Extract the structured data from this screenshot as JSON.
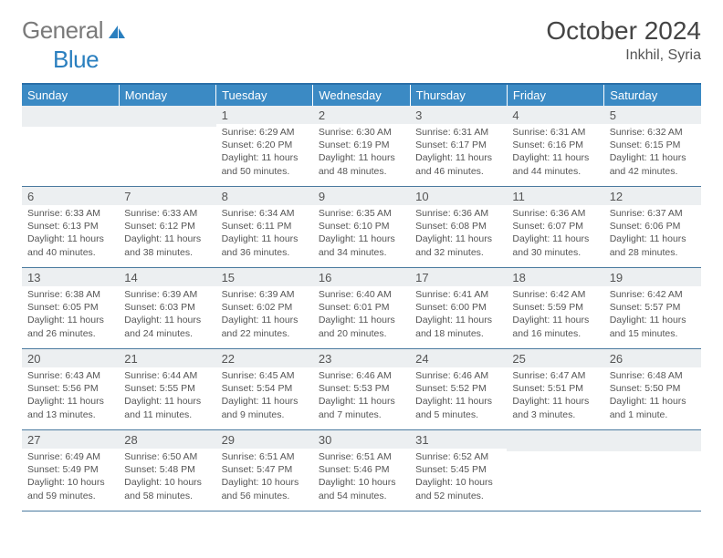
{
  "logo": {
    "part1": "General",
    "part2": "Blue"
  },
  "title": "October 2024",
  "location": "Inkhil, Syria",
  "styling": {
    "page_bg": "#ffffff",
    "header_bg": "#3b8ac4",
    "header_text": "#ffffff",
    "daynum_bg": "#eceff1",
    "text_color": "#555555",
    "rule_color": "#4a7a9f",
    "logo_gray": "#7a7a7a",
    "logo_blue": "#2a7fbf",
    "title_fontsize": 28,
    "body_fontsize": 10.5,
    "columns": 7
  },
  "day_headers": [
    "Sunday",
    "Monday",
    "Tuesday",
    "Wednesday",
    "Thursday",
    "Friday",
    "Saturday"
  ],
  "weeks": [
    [
      {
        "n": "",
        "sunrise": "",
        "sunset": "",
        "daylight": ""
      },
      {
        "n": "",
        "sunrise": "",
        "sunset": "",
        "daylight": ""
      },
      {
        "n": "1",
        "sunrise": "6:29 AM",
        "sunset": "6:20 PM",
        "daylight": "11 hours and 50 minutes."
      },
      {
        "n": "2",
        "sunrise": "6:30 AM",
        "sunset": "6:19 PM",
        "daylight": "11 hours and 48 minutes."
      },
      {
        "n": "3",
        "sunrise": "6:31 AM",
        "sunset": "6:17 PM",
        "daylight": "11 hours and 46 minutes."
      },
      {
        "n": "4",
        "sunrise": "6:31 AM",
        "sunset": "6:16 PM",
        "daylight": "11 hours and 44 minutes."
      },
      {
        "n": "5",
        "sunrise": "6:32 AM",
        "sunset": "6:15 PM",
        "daylight": "11 hours and 42 minutes."
      }
    ],
    [
      {
        "n": "6",
        "sunrise": "6:33 AM",
        "sunset": "6:13 PM",
        "daylight": "11 hours and 40 minutes."
      },
      {
        "n": "7",
        "sunrise": "6:33 AM",
        "sunset": "6:12 PM",
        "daylight": "11 hours and 38 minutes."
      },
      {
        "n": "8",
        "sunrise": "6:34 AM",
        "sunset": "6:11 PM",
        "daylight": "11 hours and 36 minutes."
      },
      {
        "n": "9",
        "sunrise": "6:35 AM",
        "sunset": "6:10 PM",
        "daylight": "11 hours and 34 minutes."
      },
      {
        "n": "10",
        "sunrise": "6:36 AM",
        "sunset": "6:08 PM",
        "daylight": "11 hours and 32 minutes."
      },
      {
        "n": "11",
        "sunrise": "6:36 AM",
        "sunset": "6:07 PM",
        "daylight": "11 hours and 30 minutes."
      },
      {
        "n": "12",
        "sunrise": "6:37 AM",
        "sunset": "6:06 PM",
        "daylight": "11 hours and 28 minutes."
      }
    ],
    [
      {
        "n": "13",
        "sunrise": "6:38 AM",
        "sunset": "6:05 PM",
        "daylight": "11 hours and 26 minutes."
      },
      {
        "n": "14",
        "sunrise": "6:39 AM",
        "sunset": "6:03 PM",
        "daylight": "11 hours and 24 minutes."
      },
      {
        "n": "15",
        "sunrise": "6:39 AM",
        "sunset": "6:02 PM",
        "daylight": "11 hours and 22 minutes."
      },
      {
        "n": "16",
        "sunrise": "6:40 AM",
        "sunset": "6:01 PM",
        "daylight": "11 hours and 20 minutes."
      },
      {
        "n": "17",
        "sunrise": "6:41 AM",
        "sunset": "6:00 PM",
        "daylight": "11 hours and 18 minutes."
      },
      {
        "n": "18",
        "sunrise": "6:42 AM",
        "sunset": "5:59 PM",
        "daylight": "11 hours and 16 minutes."
      },
      {
        "n": "19",
        "sunrise": "6:42 AM",
        "sunset": "5:57 PM",
        "daylight": "11 hours and 15 minutes."
      }
    ],
    [
      {
        "n": "20",
        "sunrise": "6:43 AM",
        "sunset": "5:56 PM",
        "daylight": "11 hours and 13 minutes."
      },
      {
        "n": "21",
        "sunrise": "6:44 AM",
        "sunset": "5:55 PM",
        "daylight": "11 hours and 11 minutes."
      },
      {
        "n": "22",
        "sunrise": "6:45 AM",
        "sunset": "5:54 PM",
        "daylight": "11 hours and 9 minutes."
      },
      {
        "n": "23",
        "sunrise": "6:46 AM",
        "sunset": "5:53 PM",
        "daylight": "11 hours and 7 minutes."
      },
      {
        "n": "24",
        "sunrise": "6:46 AM",
        "sunset": "5:52 PM",
        "daylight": "11 hours and 5 minutes."
      },
      {
        "n": "25",
        "sunrise": "6:47 AM",
        "sunset": "5:51 PM",
        "daylight": "11 hours and 3 minutes."
      },
      {
        "n": "26",
        "sunrise": "6:48 AM",
        "sunset": "5:50 PM",
        "daylight": "11 hours and 1 minute."
      }
    ],
    [
      {
        "n": "27",
        "sunrise": "6:49 AM",
        "sunset": "5:49 PM",
        "daylight": "10 hours and 59 minutes."
      },
      {
        "n": "28",
        "sunrise": "6:50 AM",
        "sunset": "5:48 PM",
        "daylight": "10 hours and 58 minutes."
      },
      {
        "n": "29",
        "sunrise": "6:51 AM",
        "sunset": "5:47 PM",
        "daylight": "10 hours and 56 minutes."
      },
      {
        "n": "30",
        "sunrise": "6:51 AM",
        "sunset": "5:46 PM",
        "daylight": "10 hours and 54 minutes."
      },
      {
        "n": "31",
        "sunrise": "6:52 AM",
        "sunset": "5:45 PM",
        "daylight": "10 hours and 52 minutes."
      },
      {
        "n": "",
        "sunrise": "",
        "sunset": "",
        "daylight": ""
      },
      {
        "n": "",
        "sunrise": "",
        "sunset": "",
        "daylight": ""
      }
    ]
  ],
  "labels": {
    "sunrise": "Sunrise: ",
    "sunset": "Sunset: ",
    "daylight": "Daylight: "
  }
}
